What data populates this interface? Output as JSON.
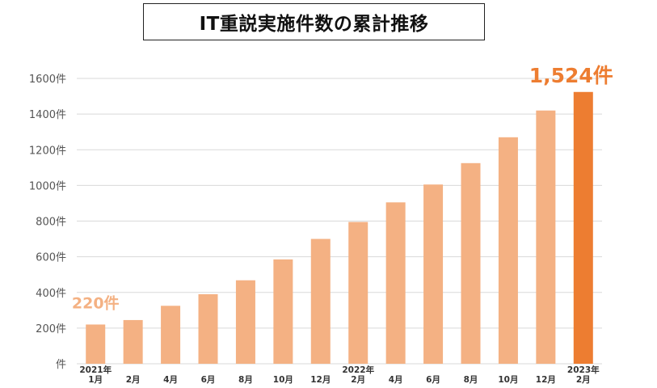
{
  "chart_data": {
    "type": "bar",
    "title": "IT重説実施件数の累計推移",
    "categories": [
      "2021年 1月",
      "2月",
      "4月",
      "6月",
      "8月",
      "10月",
      "12月",
      "2022年 2月",
      "4月",
      "6月",
      "8月",
      "10月",
      "12月",
      "2023年 2月"
    ],
    "x_tick_labels": [
      {
        "year": "2021年",
        "month": "1月"
      },
      {
        "year": "",
        "month": "2月"
      },
      {
        "year": "",
        "month": "4月"
      },
      {
        "year": "",
        "month": "6月"
      },
      {
        "year": "",
        "month": "8月"
      },
      {
        "year": "",
        "month": "10月"
      },
      {
        "year": "",
        "month": "12月"
      },
      {
        "year": "2022年",
        "month": "2月"
      },
      {
        "year": "",
        "month": "4月"
      },
      {
        "year": "",
        "month": "6月"
      },
      {
        "year": "",
        "month": "8月"
      },
      {
        "year": "",
        "month": "10月"
      },
      {
        "year": "",
        "month": "12月"
      },
      {
        "year": "2023年",
        "month": "2月"
      }
    ],
    "values": [
      220,
      245,
      325,
      390,
      468,
      585,
      700,
      795,
      905,
      1005,
      1125,
      1270,
      1420,
      1524
    ],
    "ylim": [
      0,
      1600
    ],
    "y_ticks": [
      {
        "value": 0,
        "label": "件"
      },
      {
        "value": 200,
        "label": "200件"
      },
      {
        "value": 400,
        "label": "400件"
      },
      {
        "value": 600,
        "label": "600件"
      },
      {
        "value": 800,
        "label": "800件"
      },
      {
        "value": 1000,
        "label": "1000件"
      },
      {
        "value": 1200,
        "label": "1200件"
      },
      {
        "value": 1400,
        "label": "1400件"
      },
      {
        "value": 1600,
        "label": "1600件"
      }
    ],
    "grid": true,
    "bar_color": "#f4b183",
    "highlight_color": "#ed7d31",
    "highlight_index": 13,
    "annotations": [
      {
        "index": 0,
        "text": "220件",
        "color": "#f4b183"
      },
      {
        "index": 13,
        "text": "1,524件",
        "color": "#ed7d31"
      }
    ]
  }
}
